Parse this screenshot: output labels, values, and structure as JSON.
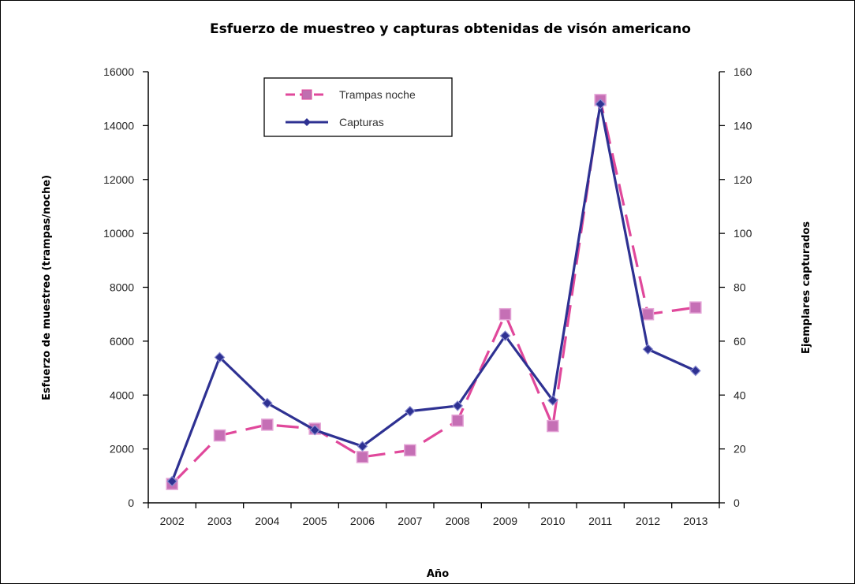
{
  "chart_data": {
    "type": "line",
    "title": "Esfuerzo de muestreo y capturas obtenidas de visón americano",
    "xlabel": "Año",
    "ylabel_left": "Esfuerzo de muestreo (trampas/noche)",
    "ylabel_right": "Ejemplares capturados",
    "categories": [
      "2002",
      "2003",
      "2004",
      "2005",
      "2006",
      "2007",
      "2008",
      "2009",
      "2010",
      "2011",
      "2012",
      "2013"
    ],
    "ylim_left": [
      0,
      16000
    ],
    "yticks_left": [
      0,
      2000,
      4000,
      6000,
      8000,
      10000,
      12000,
      14000,
      16000
    ],
    "ylim_right": [
      0,
      160
    ],
    "yticks_right": [
      0,
      20,
      40,
      60,
      80,
      100,
      120,
      140,
      160
    ],
    "legend_position": "top-left",
    "grid": false,
    "series": [
      {
        "name": "Trampas noche",
        "axis": "left",
        "style": "dashed",
        "marker": "square",
        "color": "#e0489b",
        "values": [
          700,
          2500,
          2900,
          2750,
          1700,
          1950,
          3050,
          7000,
          2850,
          14950,
          7000,
          7250
        ]
      },
      {
        "name": "Capturas",
        "axis": "right",
        "style": "solid",
        "marker": "diamond",
        "color": "#2e3192",
        "values": [
          8,
          54,
          37,
          27,
          21,
          34,
          36,
          62,
          38,
          148,
          57,
          49
        ]
      }
    ]
  }
}
